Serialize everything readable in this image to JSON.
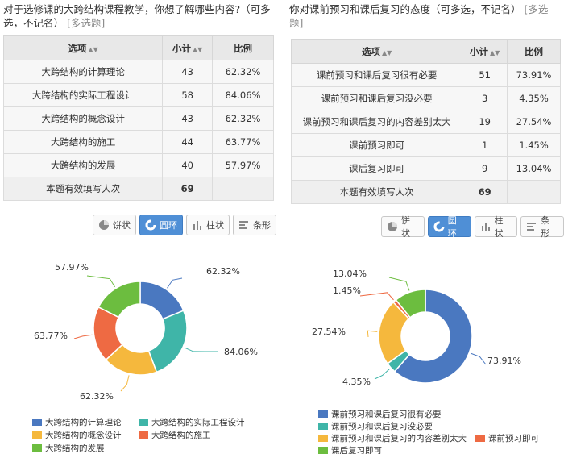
{
  "panels": [
    {
      "title": "对于选修课的大跨结构课程教学，你想了解哪些内容?（可多选，不记名）",
      "tag": "[多选题]",
      "headers": {
        "option": "选项",
        "count": "小计",
        "ratio": "比例"
      },
      "rows": [
        {
          "label": "大跨结构的计算理论",
          "count": "43",
          "ratio": "62.32%"
        },
        {
          "label": "大跨结构的实际工程设计",
          "count": "58",
          "ratio": "84.06%"
        },
        {
          "label": "大跨结构的概念设计",
          "count": "43",
          "ratio": "62.32%"
        },
        {
          "label": "大跨结构的施工",
          "count": "44",
          "ratio": "63.77%"
        },
        {
          "label": "大跨结构的发展",
          "count": "40",
          "ratio": "57.97%"
        }
      ],
      "total": {
        "label": "本题有效填写人次",
        "count": "69"
      },
      "toolbar": [
        {
          "label": "饼状",
          "icon": "pie-icon",
          "active": false
        },
        {
          "label": "圆环",
          "icon": "donut-icon",
          "active": true
        },
        {
          "label": "柱状",
          "icon": "bar-icon",
          "active": false
        },
        {
          "label": "条形",
          "icon": "hbar-icon",
          "active": false
        }
      ]
    },
    {
      "title": "你对课前预习和课后复习的态度（可多选，不记名）",
      "tag": "[多选题]",
      "headers": {
        "option": "选项",
        "count": "小计",
        "ratio": "比例"
      },
      "rows": [
        {
          "label": "课前预习和课后复习很有必要",
          "count": "51",
          "ratio": "73.91%"
        },
        {
          "label": "课前预习和课后复习没必要",
          "count": "3",
          "ratio": "4.35%"
        },
        {
          "label": "课前预习和课后复习的内容差别太大",
          "count": "19",
          "ratio": "27.54%"
        },
        {
          "label": "课前预习即可",
          "count": "1",
          "ratio": "1.45%"
        },
        {
          "label": "课后复习即可",
          "count": "9",
          "ratio": "13.04%"
        }
      ],
      "total": {
        "label": "本题有效填写人次",
        "count": "69"
      },
      "toolbar": [
        {
          "label": "饼状",
          "icon": "pie-icon",
          "active": false
        },
        {
          "label": "圆环",
          "icon": "donut-icon",
          "active": true
        },
        {
          "label": "柱状",
          "icon": "bar-icon",
          "active": false
        },
        {
          "label": "条形",
          "icon": "hbar-icon",
          "active": false
        }
      ]
    }
  ],
  "chart_data": [
    {
      "type": "pie",
      "variant": "donut",
      "categories": [
        "大跨结构的计算理论",
        "大跨结构的实际工程设计",
        "大跨结构的概念设计",
        "大跨结构的施工",
        "大跨结构的发展"
      ],
      "values": [
        43,
        58,
        43,
        44,
        40
      ],
      "data_labels": [
        "62.32%",
        "84.06%",
        "62.32%",
        "63.77%",
        "57.97%"
      ],
      "colors": [
        "#4a78c0",
        "#3fb5a8",
        "#f5b83d",
        "#ee6a43",
        "#6cbd3f"
      ],
      "legend": "bottom"
    },
    {
      "type": "pie",
      "variant": "donut",
      "categories": [
        "课前预习和课后复习很有必要",
        "课前预习和课后复习没必要",
        "课前预习和课后复习的内容差别太大",
        "课前预习即可",
        "课后复习即可"
      ],
      "values": [
        51,
        3,
        19,
        1,
        9
      ],
      "data_labels": [
        "73.91%",
        "4.35%",
        "27.54%",
        "1.45%",
        "13.04%"
      ],
      "colors": [
        "#4a78c0",
        "#3fb5a8",
        "#f5b83d",
        "#ee6a43",
        "#6cbd3f"
      ],
      "legend": "bottom"
    }
  ]
}
